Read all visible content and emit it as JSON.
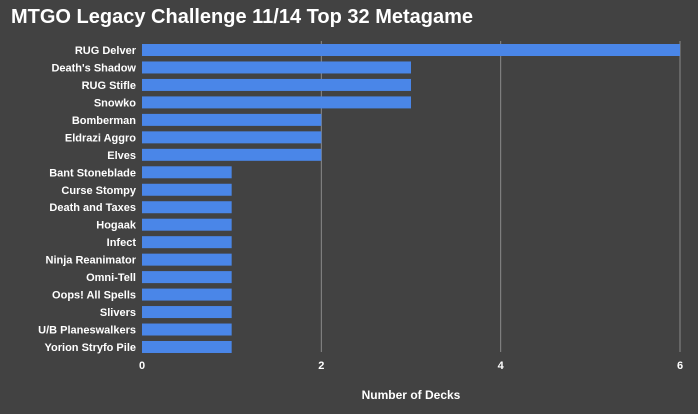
{
  "chart_data": {
    "type": "bar",
    "orientation": "horizontal",
    "title": "MTGO Legacy Challenge 11/14 Top 32 Metagame",
    "xlabel": "Number of Decks",
    "ylabel": "",
    "xlim": [
      0,
      6
    ],
    "ticks": [
      0,
      2,
      4,
      6
    ],
    "grid": true,
    "legend": "none",
    "bar_color": "#4a86e8",
    "grid_color": "#8a8a8a",
    "background": "#424242",
    "categories": [
      "RUG Delver",
      "Death's Shadow",
      "RUG Stifle",
      "Snowko",
      "Bomberman",
      "Eldrazi Aggro",
      "Elves",
      "Bant Stoneblade",
      "Curse Stompy",
      "Death and Taxes",
      "Hogaak",
      "Infect",
      "Ninja Reanimator",
      "Omni-Tell",
      "Oops! All Spells",
      "Slivers",
      "U/B Planeswalkers",
      "Yorion Stryfo Pile"
    ],
    "values": [
      6,
      3,
      3,
      3,
      2,
      2,
      2,
      1,
      1,
      1,
      1,
      1,
      1,
      1,
      1,
      1,
      1,
      1
    ]
  }
}
